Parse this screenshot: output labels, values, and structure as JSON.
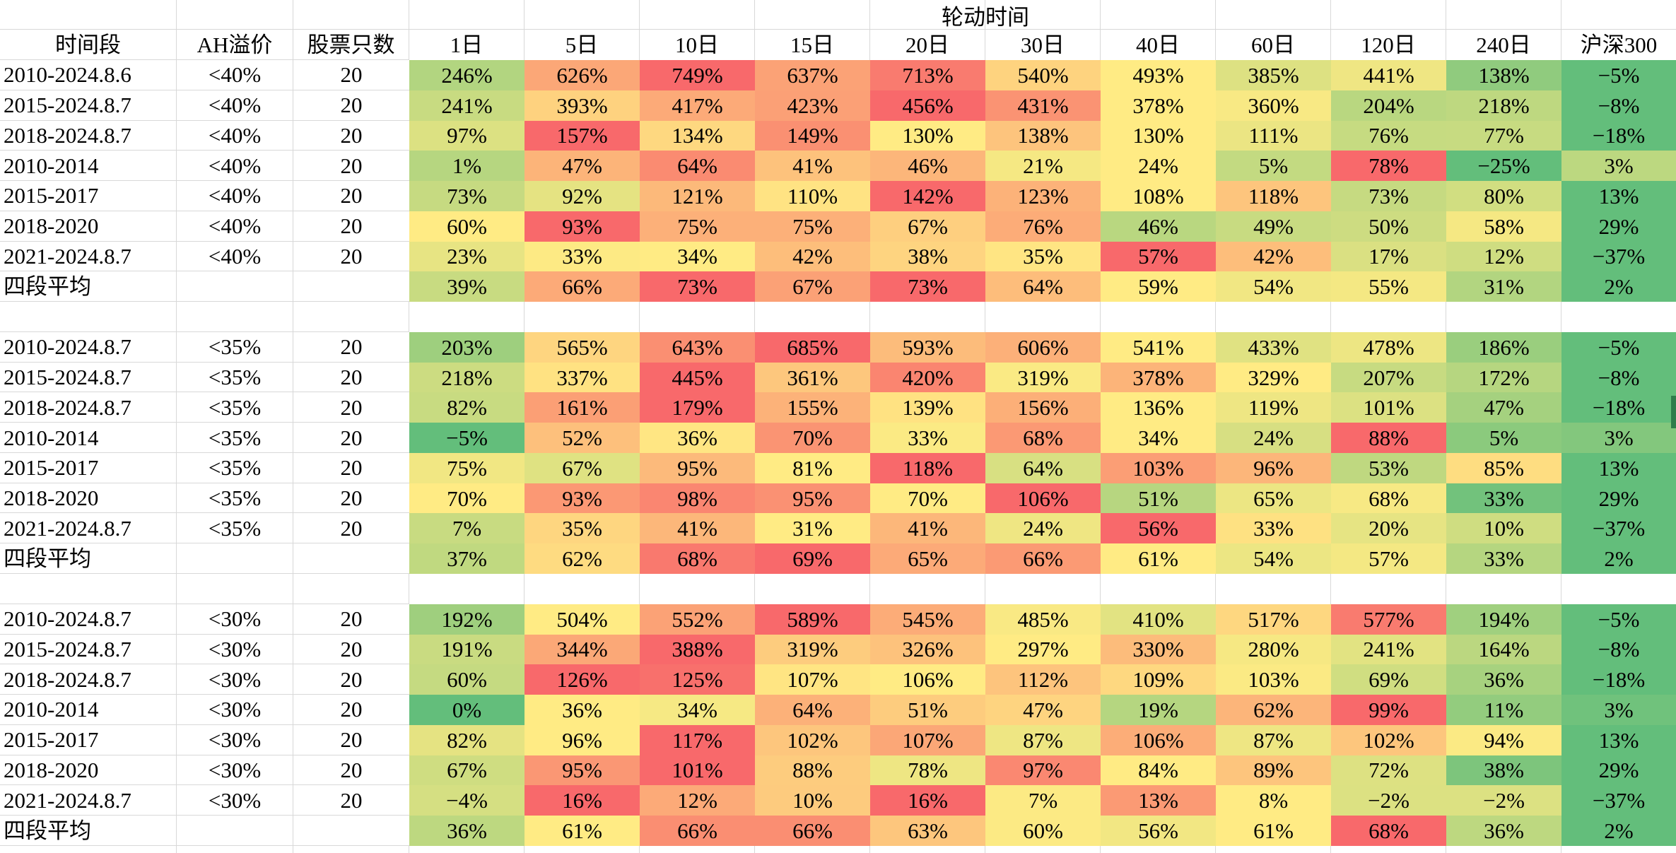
{
  "sheet": {
    "group_header": "轮动时间",
    "columns": [
      "时间段",
      "AH溢价",
      "股票只数",
      "1日",
      "5日",
      "10日",
      "15日",
      "20日",
      "30日",
      "40日",
      "60日",
      "120日",
      "240日",
      "沪深300"
    ],
    "color_scale": {
      "min_color": "#63BE7B",
      "mid_color": "#FFEB84",
      "max_color": "#F8696B",
      "midpoint": "percentile-50"
    },
    "gridline_color": "#d8d8d8",
    "scroll_artifact_color": "#2E7D4B",
    "blocks": [
      {
        "premium_bucket": "<40%",
        "rows": [
          {
            "period": "2010-2024.8.6",
            "premium": "<40%",
            "count": "20",
            "values": [
              246,
              626,
              749,
              637,
              713,
              540,
              493,
              385,
              441,
              138,
              -5
            ]
          },
          {
            "period": "2015-2024.8.7",
            "premium": "<40%",
            "count": "20",
            "values": [
              241,
              393,
              417,
              423,
              456,
              431,
              378,
              360,
              204,
              218,
              -8
            ]
          },
          {
            "period": "2018-2024.8.7",
            "premium": "<40%",
            "count": "20",
            "values": [
              97,
              157,
              134,
              149,
              130,
              138,
              130,
              111,
              76,
              77,
              -18
            ]
          },
          {
            "period": "2010-2014",
            "premium": "<40%",
            "count": "20",
            "values": [
              1,
              47,
              64,
              41,
              46,
              21,
              24,
              5,
              78,
              -25,
              3
            ]
          },
          {
            "period": "2015-2017",
            "premium": "<40%",
            "count": "20",
            "values": [
              73,
              92,
              121,
              110,
              142,
              123,
              108,
              118,
              73,
              80,
              13
            ]
          },
          {
            "period": "2018-2020",
            "premium": "<40%",
            "count": "20",
            "values": [
              60,
              93,
              75,
              75,
              67,
              76,
              46,
              49,
              50,
              58,
              29
            ]
          },
          {
            "period": "2021-2024.8.7",
            "premium": "<40%",
            "count": "20",
            "values": [
              23,
              33,
              34,
              42,
              38,
              35,
              57,
              42,
              17,
              12,
              -37
            ]
          },
          {
            "period": "四段平均",
            "premium": "",
            "count": "",
            "values": [
              39,
              66,
              73,
              67,
              73,
              64,
              59,
              54,
              55,
              31,
              2
            ]
          }
        ]
      },
      {
        "premium_bucket": "<35%",
        "rows": [
          {
            "period": "2010-2024.8.7",
            "premium": "<35%",
            "count": "20",
            "values": [
              203,
              565,
              643,
              685,
              593,
              606,
              541,
              433,
              478,
              186,
              -5
            ]
          },
          {
            "period": "2015-2024.8.7",
            "premium": "<35%",
            "count": "20",
            "values": [
              218,
              337,
              445,
              361,
              420,
              319,
              378,
              329,
              207,
              172,
              -8
            ]
          },
          {
            "period": "2018-2024.8.7",
            "premium": "<35%",
            "count": "20",
            "values": [
              82,
              161,
              179,
              155,
              139,
              156,
              136,
              119,
              101,
              47,
              -18
            ]
          },
          {
            "period": "2010-2014",
            "premium": "<35%",
            "count": "20",
            "values": [
              -5,
              52,
              36,
              70,
              33,
              68,
              34,
              24,
              88,
              5,
              3
            ]
          },
          {
            "period": "2015-2017",
            "premium": "<35%",
            "count": "20",
            "values": [
              75,
              67,
              95,
              81,
              118,
              64,
              103,
              96,
              53,
              85,
              13
            ]
          },
          {
            "period": "2018-2020",
            "premium": "<35%",
            "count": "20",
            "values": [
              70,
              93,
              98,
              95,
              70,
              106,
              51,
              65,
              68,
              33,
              29
            ]
          },
          {
            "period": "2021-2024.8.7",
            "premium": "<35%",
            "count": "20",
            "values": [
              7,
              35,
              41,
              31,
              41,
              24,
              56,
              33,
              20,
              10,
              -37
            ]
          },
          {
            "period": "四段平均",
            "premium": "",
            "count": "",
            "values": [
              37,
              62,
              68,
              69,
              65,
              66,
              61,
              54,
              57,
              33,
              2
            ]
          }
        ]
      },
      {
        "premium_bucket": "<30%",
        "rows": [
          {
            "period": "2010-2024.8.7",
            "premium": "<30%",
            "count": "20",
            "values": [
              192,
              504,
              552,
              589,
              545,
              485,
              410,
              517,
              577,
              194,
              -5
            ]
          },
          {
            "period": "2015-2024.8.7",
            "premium": "<30%",
            "count": "20",
            "values": [
              191,
              344,
              388,
              319,
              326,
              297,
              330,
              280,
              241,
              164,
              -8
            ]
          },
          {
            "period": "2018-2024.8.7",
            "premium": "<30%",
            "count": "20",
            "values": [
              60,
              126,
              125,
              107,
              106,
              112,
              109,
              103,
              69,
              36,
              -18
            ]
          },
          {
            "period": "2010-2014",
            "premium": "<30%",
            "count": "20",
            "values": [
              0,
              36,
              34,
              64,
              51,
              47,
              19,
              62,
              99,
              11,
              3
            ]
          },
          {
            "period": "2015-2017",
            "premium": "<30%",
            "count": "20",
            "values": [
              82,
              96,
              117,
              102,
              107,
              87,
              106,
              87,
              102,
              94,
              13
            ]
          },
          {
            "period": "2018-2020",
            "premium": "<30%",
            "count": "20",
            "values": [
              67,
              95,
              101,
              88,
              78,
              97,
              84,
              89,
              72,
              38,
              29
            ]
          },
          {
            "period": "2021-2024.8.7",
            "premium": "<30%",
            "count": "20",
            "values": [
              -4,
              16,
              12,
              10,
              16,
              7,
              13,
              8,
              -2,
              -2,
              -37
            ]
          },
          {
            "period": "四段平均",
            "premium": "",
            "count": "",
            "values": [
              36,
              61,
              66,
              66,
              63,
              60,
              56,
              61,
              68,
              36,
              2
            ]
          }
        ]
      }
    ]
  }
}
